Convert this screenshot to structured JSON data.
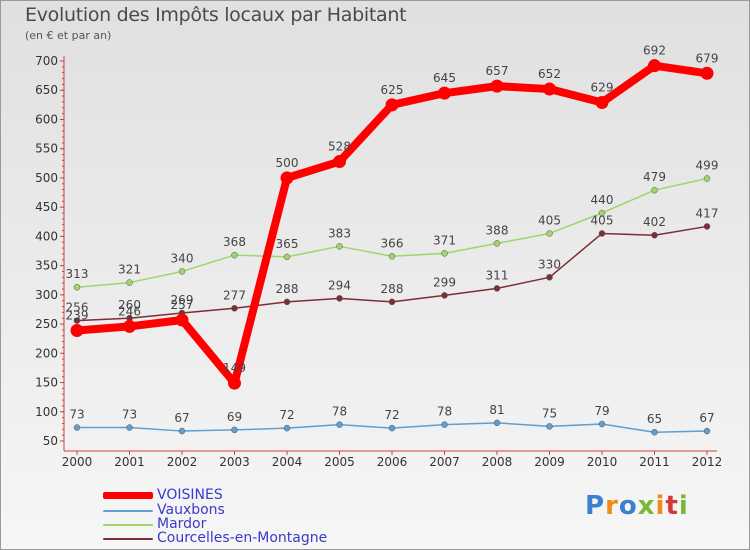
{
  "chart_data": {
    "type": "line",
    "title": "Evolution des Impôts locaux par Habitant",
    "subtitle": "(en € et par an)",
    "x": [
      "2000",
      "2001",
      "2002",
      "2003",
      "2004",
      "2005",
      "2006",
      "2007",
      "2008",
      "2009",
      "2010",
      "2011",
      "2012"
    ],
    "yticks": [
      50,
      100,
      150,
      200,
      250,
      300,
      350,
      400,
      450,
      500,
      550,
      600,
      650,
      700
    ],
    "ylim": [
      50,
      700
    ],
    "grid": false,
    "legend_position": "bottom-left",
    "series": [
      {
        "name": "VOISINES",
        "color": "#ff0000",
        "values": [
          239,
          246,
          257,
          149,
          500,
          528,
          625,
          645,
          657,
          652,
          629,
          692,
          679
        ]
      },
      {
        "name": "Vauxbons",
        "color": "#5f9ed1",
        "values": [
          73,
          73,
          67,
          69,
          72,
          78,
          72,
          78,
          81,
          75,
          79,
          65,
          67
        ]
      },
      {
        "name": "Mardor",
        "color": "#9fd66b",
        "values": [
          313,
          321,
          340,
          368,
          365,
          383,
          366,
          371,
          388,
          405,
          440,
          479,
          499
        ]
      },
      {
        "name": "Courcelles-en-Montagne",
        "color": "#7b2f35",
        "values": [
          256,
          260,
          269,
          277,
          288,
          294,
          288,
          299,
          311,
          330,
          405,
          402,
          417
        ]
      }
    ]
  },
  "logo": {
    "text": "Proxiti",
    "colors": [
      "#3a7fd0",
      "#f08a1a",
      "#3a7fd0",
      "#7ab73a",
      "#f08a1a",
      "#d23a3a",
      "#7ab73a"
    ]
  }
}
